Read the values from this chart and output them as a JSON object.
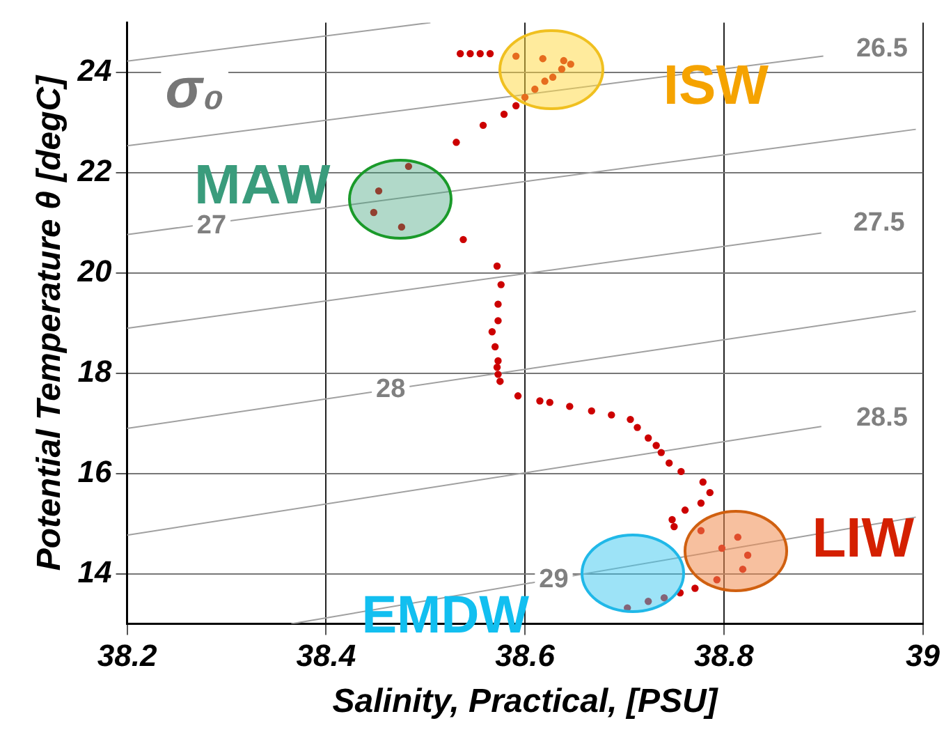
{
  "chart_data": {
    "type": "scatter",
    "xlabel": "Salinity, Practical, [PSU]",
    "ylabel": "Potential Temperature θ [degC]",
    "xlim": [
      38.2,
      39
    ],
    "ylim": [
      13,
      25
    ],
    "xticks": [
      38.2,
      38.4,
      38.6,
      38.8,
      39
    ],
    "yticks": [
      14,
      16,
      18,
      20,
      22,
      24
    ],
    "grid": true,
    "legend": false,
    "marker": "circle",
    "line_style": "solid",
    "series": [
      {
        "color": "#cc0000",
        "x": [
          38.535,
          38.545,
          38.555,
          38.565,
          38.591,
          38.618,
          38.639,
          38.646,
          38.637,
          38.628,
          38.62,
          38.61,
          38.6,
          38.591,
          38.579,
          38.558,
          38.531,
          38.483,
          38.453,
          38.448,
          38.476,
          38.538,
          38.572,
          38.576,
          38.573,
          38.573,
          38.567,
          38.57,
          38.573,
          38.572,
          38.573,
          38.575,
          38.593,
          38.615,
          38.625,
          38.645,
          38.667,
          38.687,
          38.706,
          38.713,
          38.724,
          38.732,
          38.737,
          38.745,
          38.757,
          38.779,
          38.786,
          38.777,
          38.761,
          38.748,
          38.75,
          38.777,
          38.814,
          38.798,
          38.824,
          38.819,
          38.793,
          38.771,
          38.756,
          38.74,
          38.724,
          38.703
        ],
        "values": [
          24.38,
          24.38,
          24.38,
          24.38,
          24.33,
          24.28,
          24.24,
          24.17,
          24.07,
          23.91,
          23.83,
          23.67,
          23.51,
          23.34,
          23.17,
          22.95,
          22.61,
          22.13,
          21.64,
          21.21,
          20.92,
          20.67,
          20.14,
          19.77,
          19.38,
          19.05,
          18.83,
          18.53,
          18.25,
          18.12,
          17.98,
          17.84,
          17.55,
          17.45,
          17.42,
          17.34,
          17.25,
          17.17,
          17.08,
          16.92,
          16.71,
          16.56,
          16.42,
          16.21,
          16.04,
          15.83,
          15.62,
          15.41,
          15.27,
          15.08,
          14.94,
          14.86,
          14.73,
          14.51,
          14.37,
          14.09,
          13.88,
          13.71,
          13.62,
          13.52,
          13.45,
          13.32
        ]
      },
      {
        "type": "line",
        "marker": "none",
        "color": "#a0a0a0",
        "x": [
          38.2,
          38.505
        ],
        "values": [
          24.23,
          25
        ]
      },
      {
        "type": "line",
        "marker": "none",
        "color": "#a0a0a0",
        "x": [
          38.2,
          38.9
        ],
        "values": [
          22.54,
          24.33
        ]
      },
      {
        "type": "line",
        "marker": "none",
        "color": "#a0a0a0",
        "x": [
          38.2,
          38.993
        ],
        "values": [
          20.77,
          22.87
        ]
      },
      {
        "type": "line",
        "marker": "none",
        "color": "#a0a0a0",
        "x": [
          38.2,
          38.898
        ],
        "values": [
          18.9,
          20.8
        ]
      },
      {
        "type": "line",
        "marker": "none",
        "color": "#a0a0a0",
        "x": [
          38.2,
          38.993
        ],
        "values": [
          16.9,
          19.24
        ]
      },
      {
        "type": "line",
        "marker": "none",
        "color": "#a0a0a0",
        "x": [
          38.2,
          38.898
        ],
        "values": [
          14.77,
          16.94
        ]
      },
      {
        "type": "line",
        "marker": "none",
        "color": "#a0a0a0",
        "x": [
          38.365,
          38.993
        ],
        "values": [
          13,
          15.13
        ]
      }
    ],
    "annotations": [
      "σ₀",
      "ISW",
      "MAW",
      "LIW",
      "EMDW",
      {
        "text": "26.5",
        "x": 38.959,
        "y": 24.47
      },
      {
        "text": "27",
        "x": 38.285,
        "y": 20.94
      },
      {
        "text": "27.5",
        "x": 38.956,
        "y": 20.99
      },
      {
        "text": "28",
        "x": 38.465,
        "y": 17.67
      },
      {
        "text": "28.5",
        "x": 38.959,
        "y": 17.1
      },
      {
        "text": "29",
        "x": 38.629,
        "y": 13.88
      }
    ]
  }
}
